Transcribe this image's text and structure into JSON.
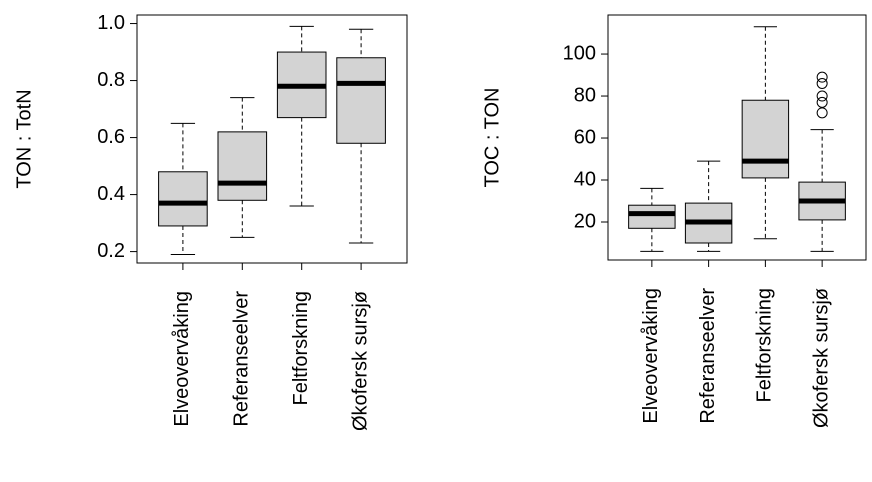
{
  "chart_data": [
    {
      "type": "box",
      "ylabel": "TON : TotN",
      "categories": [
        "Elveovervåking",
        "Referanseelver",
        "Feltforskning",
        "Økofersk sursjø"
      ],
      "boxes": [
        {
          "min": 0.19,
          "q1": 0.29,
          "median": 0.37,
          "q3": 0.48,
          "max": 0.65
        },
        {
          "min": 0.25,
          "q1": 0.38,
          "median": 0.44,
          "q3": 0.62,
          "max": 0.74
        },
        {
          "min": 0.36,
          "q1": 0.67,
          "median": 0.78,
          "q3": 0.9,
          "max": 0.99
        },
        {
          "min": 0.23,
          "q1": 0.58,
          "median": 0.79,
          "q3": 0.88,
          "max": 0.98
        }
      ],
      "color": "#d3d3d3",
      "ylim": [
        0.16,
        1.03
      ],
      "yticks": [
        0.2,
        0.4,
        0.6,
        0.8,
        {
          "value": 1,
          "label": "1.0"
        }
      ]
    },
    {
      "type": "box",
      "ylabel": "TOC : TON",
      "categories": [
        "Elveovervåking",
        "Referanseelver",
        "Feltforskning",
        "Økofersk sursjø"
      ],
      "boxes": [
        {
          "min": 6,
          "q1": 17,
          "median": 24,
          "q3": 28,
          "max": 36
        },
        {
          "min": 6,
          "q1": 10,
          "median": 20,
          "q3": 29,
          "max": 49
        },
        {
          "min": 12,
          "q1": 41,
          "median": 49,
          "q3": 78,
          "max": 113
        },
        {
          "min": 6,
          "q1": 21,
          "median": 30,
          "q3": 39,
          "max": 64,
          "outliers": [
            89,
            86,
            80,
            77,
            72
          ]
        }
      ],
      "color": "#d3d3d3",
      "ylim": [
        1.9,
        118.6
      ],
      "yticks": [
        20,
        40,
        60,
        80,
        100
      ]
    }
  ]
}
